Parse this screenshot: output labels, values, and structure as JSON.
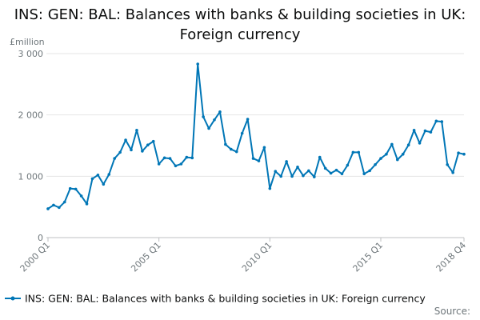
{
  "title": "INS: GEN: BAL: Balances with banks & building societies in UK: Foreign currency",
  "source_label": "Source:",
  "colors": {
    "series": "#0076b6",
    "grid": "#e4e4e4",
    "axis": "#bfc1c3",
    "text_muted": "#6f777b"
  },
  "chart_data": {
    "type": "line",
    "title": "INS: GEN: BAL: Balances with banks & building societies in UK: Foreign currency",
    "ylabel": "£million",
    "xlabel": "",
    "ylim": [
      0,
      3000
    ],
    "yticks": [
      0,
      1000,
      2000,
      3000
    ],
    "ytick_labels": [
      "0",
      "1 000",
      "2 000",
      "3 000"
    ],
    "xticks": [
      "2000 Q1",
      "2005 Q1",
      "2010 Q1",
      "2015 Q1",
      "2018 Q4"
    ],
    "grid": true,
    "legend_position": "bottom",
    "x": [
      "2000 Q1",
      "2000 Q2",
      "2000 Q3",
      "2000 Q4",
      "2001 Q1",
      "2001 Q2",
      "2001 Q3",
      "2001 Q4",
      "2002 Q1",
      "2002 Q2",
      "2002 Q3",
      "2002 Q4",
      "2003 Q1",
      "2003 Q2",
      "2003 Q3",
      "2003 Q4",
      "2004 Q1",
      "2004 Q2",
      "2004 Q3",
      "2004 Q4",
      "2005 Q1",
      "2005 Q2",
      "2005 Q3",
      "2005 Q4",
      "2006 Q1",
      "2006 Q2",
      "2006 Q3",
      "2006 Q4",
      "2007 Q1",
      "2007 Q2",
      "2007 Q3",
      "2007 Q4",
      "2008 Q1",
      "2008 Q2",
      "2008 Q3",
      "2008 Q4",
      "2009 Q1",
      "2009 Q2",
      "2009 Q3",
      "2009 Q4",
      "2010 Q1",
      "2010 Q2",
      "2010 Q3",
      "2010 Q4",
      "2011 Q1",
      "2011 Q2",
      "2011 Q3",
      "2011 Q4",
      "2012 Q1",
      "2012 Q2",
      "2012 Q3",
      "2012 Q4",
      "2013 Q1",
      "2013 Q2",
      "2013 Q3",
      "2013 Q4",
      "2014 Q1",
      "2014 Q2",
      "2014 Q3",
      "2014 Q4",
      "2015 Q1",
      "2015 Q2",
      "2015 Q3",
      "2015 Q4",
      "2016 Q1",
      "2016 Q2",
      "2016 Q3",
      "2016 Q4",
      "2017 Q1",
      "2017 Q2",
      "2017 Q3",
      "2017 Q4",
      "2018 Q1",
      "2018 Q2",
      "2018 Q3",
      "2018 Q4"
    ],
    "series": [
      {
        "name": "INS: GEN: BAL: Balances with banks & building societies in UK: Foreign currency",
        "values": [
          470,
          530,
          490,
          580,
          800,
          790,
          680,
          550,
          960,
          1020,
          870,
          1030,
          1290,
          1390,
          1590,
          1430,
          1750,
          1410,
          1510,
          1570,
          1200,
          1300,
          1290,
          1170,
          1200,
          1310,
          1300,
          2830,
          1970,
          1780,
          1920,
          2050,
          1520,
          1440,
          1400,
          1700,
          1930,
          1290,
          1250,
          1470,
          800,
          1080,
          1000,
          1240,
          1000,
          1150,
          1010,
          1090,
          990,
          1310,
          1130,
          1050,
          1100,
          1040,
          1180,
          1390,
          1390,
          1040,
          1090,
          1190,
          1290,
          1360,
          1520,
          1270,
          1360,
          1510,
          1750,
          1540,
          1740,
          1720,
          1900,
          1890,
          1190,
          1060,
          1380,
          1360
        ]
      }
    ]
  }
}
